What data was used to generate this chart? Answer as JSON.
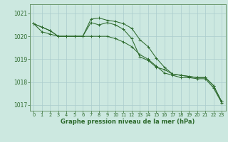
{
  "background_color": "#cce8e0",
  "line_color": "#2d6a2d",
  "grid_color": "#aacccc",
  "xlabel": "Graphe pression niveau de la mer (hPa)",
  "ylim": [
    1016.75,
    1021.4
  ],
  "yticks": [
    1017,
    1018,
    1019,
    1020,
    1021
  ],
  "xticks": [
    0,
    1,
    2,
    3,
    4,
    5,
    6,
    7,
    8,
    9,
    10,
    11,
    12,
    13,
    14,
    15,
    16,
    17,
    18,
    19,
    20,
    21,
    22,
    23
  ],
  "series": [
    [
      1020.55,
      1020.4,
      1020.25,
      1020.0,
      1020.0,
      1020.0,
      1020.0,
      1020.75,
      1020.8,
      1020.7,
      1020.65,
      1020.55,
      1020.35,
      1019.85,
      1019.55,
      1019.05,
      1018.65,
      1018.35,
      1018.3,
      1018.25,
      1018.2,
      1018.2,
      1017.85,
      1017.15
    ],
    [
      1020.55,
      1020.4,
      1020.25,
      1020.0,
      1020.0,
      1020.0,
      1020.0,
      1020.6,
      1020.5,
      1020.6,
      1020.5,
      1020.3,
      1019.9,
      1019.1,
      1018.95,
      1018.65,
      1018.55,
      1018.35,
      1018.3,
      1018.25,
      1018.2,
      1018.2,
      1017.85,
      1017.15
    ],
    [
      1020.55,
      1020.2,
      1020.1,
      1020.0,
      1020.0,
      1020.0,
      1020.0,
      1020.0,
      1020.0,
      1020.0,
      1019.9,
      1019.75,
      1019.55,
      1019.2,
      1019.0,
      1018.7,
      1018.4,
      1018.3,
      1018.2,
      1018.2,
      1018.15,
      1018.15,
      1017.75,
      1017.1
    ]
  ]
}
